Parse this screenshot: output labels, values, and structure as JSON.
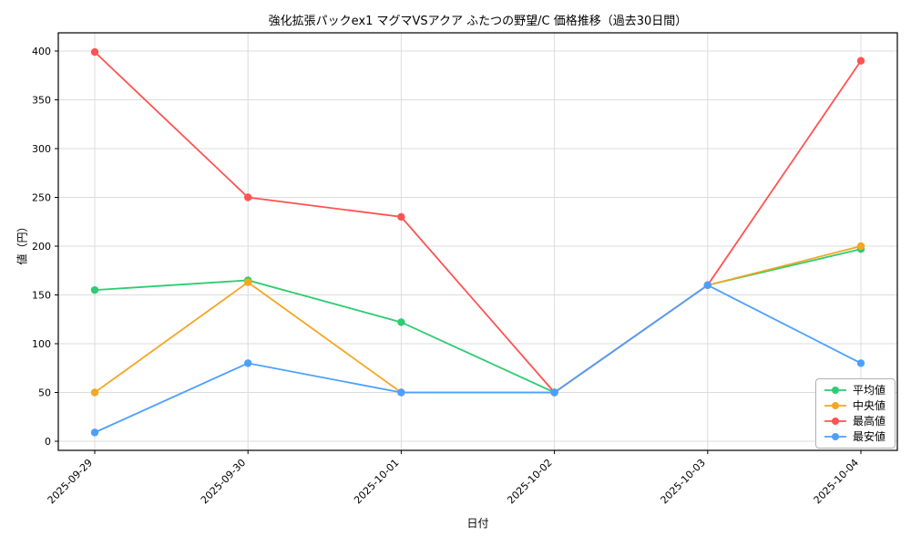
{
  "chart_data": {
    "type": "line",
    "title": "強化拡張パックex1 マグマVSアクア ふたつの野望/C 価格推移（過去30日間）",
    "xlabel": "日付",
    "ylabel": "値（円）",
    "categories": [
      "2025-09-29",
      "2025-09-30",
      "2025-10-01",
      "2025-10-02",
      "2025-10-03",
      "2025-10-04"
    ],
    "ylim": [
      0,
      400
    ],
    "yticks": [
      0,
      50,
      100,
      150,
      200,
      250,
      300,
      350,
      400
    ],
    "grid": true,
    "legend_position": "lower right",
    "series": [
      {
        "name": "平均値",
        "color": "#2ecc71",
        "values": [
          155,
          165,
          122,
          50,
          160,
          197
        ]
      },
      {
        "name": "中央値",
        "color": "#f5a623",
        "values": [
          50,
          163,
          50,
          50,
          160,
          200
        ]
      },
      {
        "name": "最高値",
        "color": "#ff5252",
        "values": [
          399,
          250,
          230,
          50,
          160,
          390
        ]
      },
      {
        "name": "最安値",
        "color": "#4d9fff",
        "values": [
          9,
          80,
          50,
          50,
          160,
          80
        ]
      }
    ]
  }
}
